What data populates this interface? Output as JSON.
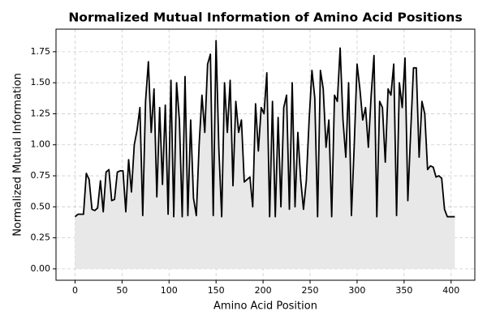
{
  "chart_data": {
    "type": "area-line",
    "title": "Normalized Mutual Information of Amino Acid Positions",
    "xlabel": "Amino Acid Position",
    "ylabel": "Normalized Mutual Information",
    "line_color": "#000000",
    "fill_color": "#e8e8e8",
    "grid": true,
    "x": [
      0,
      3,
      6,
      9,
      12,
      15,
      18,
      21,
      24,
      27,
      30,
      33,
      36,
      39,
      42,
      45,
      48,
      51,
      54,
      57,
      60,
      63,
      66,
      69,
      72,
      75,
      78,
      81,
      84,
      87,
      90,
      93,
      96,
      99,
      102,
      105,
      108,
      111,
      114,
      117,
      120,
      123,
      126,
      129,
      132,
      135,
      138,
      141,
      144,
      147,
      150,
      153,
      156,
      159,
      162,
      165,
      168,
      171,
      174,
      177,
      180,
      183,
      186,
      189,
      192,
      195,
      198,
      201,
      204,
      207,
      210,
      213,
      216,
      219,
      222,
      225,
      228,
      231,
      234,
      237,
      240,
      243,
      246,
      249,
      252,
      255,
      258,
      261,
      264,
      267,
      270,
      273,
      276,
      279,
      282,
      285,
      288,
      291,
      294,
      297,
      300,
      303,
      306,
      309,
      312,
      315,
      318,
      321,
      324,
      327,
      330,
      333,
      336,
      339,
      342,
      345,
      348,
      351,
      354,
      357,
      360,
      363,
      366,
      369,
      372,
      375,
      378,
      381,
      384,
      387,
      390,
      393,
      396,
      399,
      402,
      404
    ],
    "values": [
      0.42,
      0.44,
      0.44,
      0.44,
      0.77,
      0.72,
      0.48,
      0.47,
      0.49,
      0.71,
      0.46,
      0.78,
      0.8,
      0.55,
      0.56,
      0.78,
      0.79,
      0.79,
      0.46,
      0.88,
      0.62,
      1.0,
      1.12,
      1.3,
      0.43,
      1.35,
      1.67,
      1.1,
      1.45,
      0.58,
      1.3,
      0.68,
      1.32,
      0.44,
      1.52,
      0.42,
      1.5,
      1.2,
      0.42,
      1.55,
      0.43,
      1.2,
      0.57,
      0.43,
      1.0,
      1.4,
      1.1,
      1.65,
      1.73,
      0.43,
      1.84,
      0.96,
      0.42,
      1.5,
      1.1,
      1.52,
      0.67,
      1.35,
      1.1,
      1.2,
      0.7,
      0.72,
      0.74,
      0.5,
      1.33,
      0.95,
      1.3,
      1.25,
      1.58,
      0.42,
      1.35,
      0.42,
      1.22,
      0.5,
      1.3,
      1.4,
      0.48,
      1.5,
      0.5,
      1.1,
      0.72,
      0.48,
      0.71,
      1.2,
      1.6,
      1.38,
      0.42,
      1.6,
      1.45,
      0.98,
      1.2,
      0.42,
      1.4,
      1.35,
      1.78,
      1.2,
      0.9,
      1.5,
      0.43,
      1.0,
      1.65,
      1.45,
      1.2,
      1.3,
      0.98,
      1.4,
      1.72,
      0.42,
      1.35,
      1.3,
      0.86,
      1.45,
      1.4,
      1.65,
      0.43,
      1.5,
      1.3,
      1.7,
      0.55,
      1.1,
      1.62,
      1.62,
      0.9,
      1.35,
      1.25,
      0.8,
      0.83,
      0.82,
      0.74,
      0.75,
      0.73,
      0.48,
      0.42,
      0.42,
      0.42,
      0.42
    ],
    "xlim": [
      -20.25,
      425.25
    ],
    "ylim": [
      -0.092,
      1.932
    ],
    "xticks": [
      0,
      50,
      100,
      150,
      200,
      250,
      300,
      350,
      400
    ],
    "yticks": [
      {
        "value": 0,
        "label": "0.00"
      },
      0.25,
      {
        "value": 0.5,
        "label": "0.50"
      },
      0.75,
      {
        "value": 1,
        "label": "1.00"
      },
      1.25,
      {
        "value": 1.5,
        "label": "1.50"
      },
      1.75
    ]
  }
}
